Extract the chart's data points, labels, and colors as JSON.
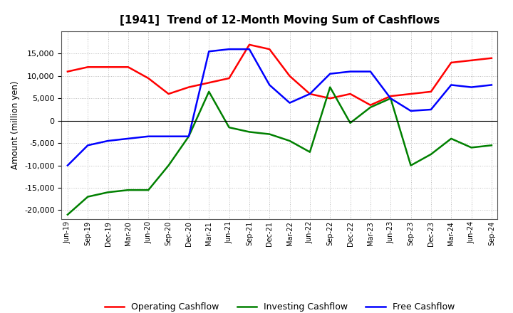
{
  "title": "[1941]  Trend of 12-Month Moving Sum of Cashflows",
  "ylabel": "Amount (million yen)",
  "x_labels": [
    "Jun-19",
    "Sep-19",
    "Dec-19",
    "Mar-20",
    "Jun-20",
    "Sep-20",
    "Dec-20",
    "Mar-21",
    "Jun-21",
    "Sep-21",
    "Dec-21",
    "Mar-22",
    "Jun-22",
    "Sep-22",
    "Dec-22",
    "Mar-23",
    "Jun-23",
    "Sep-23",
    "Dec-23",
    "Mar-24",
    "Jun-24",
    "Sep-24"
  ],
  "operating": [
    11000,
    12000,
    12000,
    12000,
    9500,
    6000,
    7500,
    8500,
    9500,
    17000,
    16000,
    10000,
    6000,
    5000,
    6000,
    3500,
    5500,
    6000,
    6500,
    13000,
    13500,
    14000
  ],
  "investing": [
    -21000,
    -17000,
    -16000,
    -15500,
    -15500,
    -10000,
    -3500,
    6500,
    -1500,
    -2500,
    -3000,
    -4500,
    -7000,
    7500,
    -500,
    3000,
    5000,
    -10000,
    -7500,
    -4000,
    -6000,
    -5500
  ],
  "free": [
    -10000,
    -5500,
    -4500,
    -4000,
    -3500,
    -3500,
    -3500,
    15500,
    16000,
    16000,
    8000,
    4000,
    6000,
    10500,
    11000,
    11000,
    5000,
    2200,
    2500,
    8000,
    7500,
    8000
  ],
  "ylim": [
    -22000,
    20000
  ],
  "yticks": [
    -20000,
    -15000,
    -10000,
    -5000,
    0,
    5000,
    10000,
    15000
  ],
  "colors": {
    "operating": "#FF0000",
    "investing": "#008000",
    "free": "#0000FF"
  },
  "background_color": "#FFFFFF",
  "plot_bg_color": "#FFFFFF",
  "grid_color": "#AAAAAA",
  "legend_labels": [
    "Operating Cashflow",
    "Investing Cashflow",
    "Free Cashflow"
  ]
}
